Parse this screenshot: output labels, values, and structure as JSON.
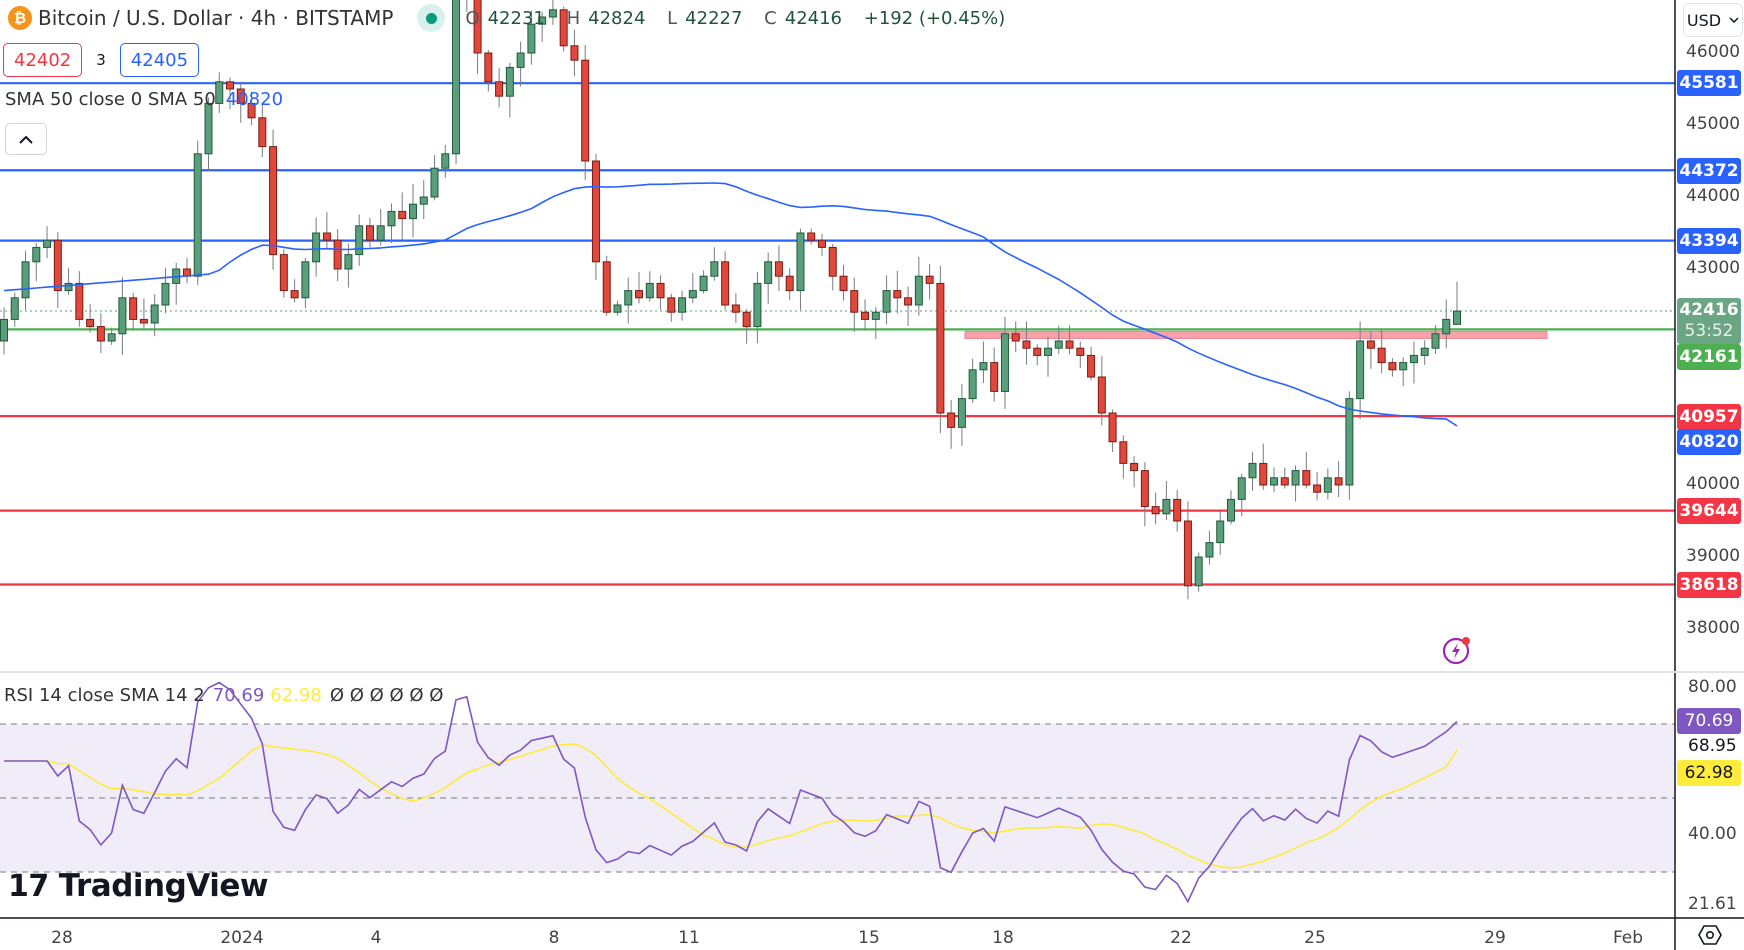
{
  "header": {
    "symbol_title": "Bitcoin / U.S. Dollar · 4h · BITSTAMP",
    "symbol_icon": "bitcoin-icon",
    "market_status_icon": "market-open-dot-icon",
    "ohlc": {
      "open_label": "O",
      "open": "42231",
      "high_label": "H",
      "high": "42824",
      "low_label": "L",
      "low": "42227",
      "close_label": "C",
      "close": "42416",
      "change": "+192 (+0.45%)"
    }
  },
  "trade": {
    "sell_price": "42402",
    "spread": "3",
    "buy_price": "42405"
  },
  "sma_legend": {
    "label": "SMA 50 close 0 SMA 50",
    "value": "40820"
  },
  "rsi_legend": {
    "label": "RSI 14 close SMA 14 2",
    "rsi_value": "70.69",
    "sma_value": "62.98",
    "na_values": [
      "Ø",
      "Ø",
      "Ø",
      "Ø",
      "Ø",
      "Ø"
    ]
  },
  "currency": {
    "selected": "USD"
  },
  "branding": {
    "logo_text": "TradingView",
    "logo_mark": "17"
  },
  "price_axis": {
    "ticks": [
      "46000",
      "45000",
      "44000",
      "43000",
      "40000",
      "39000",
      "38000"
    ],
    "tags": [
      {
        "value": "45581",
        "color": "#2962ff"
      },
      {
        "value": "44372",
        "color": "#2962ff"
      },
      {
        "value": "43394",
        "color": "#2962ff"
      },
      {
        "value": "42161",
        "color": "#4caf50"
      },
      {
        "value": "40957",
        "color": "#f23645"
      },
      {
        "value": "40820",
        "color": "#2962ff"
      },
      {
        "value": "39644",
        "color": "#f23645"
      },
      {
        "value": "38618",
        "color": "#f23645"
      }
    ],
    "last_price": "42416",
    "countdown": "53:52",
    "last_price_color": "#6aa584"
  },
  "rsi_axis": {
    "ticks": [
      "80.00",
      "68.95",
      "40.00",
      "21.61"
    ],
    "rsi_tag": {
      "value": "70.69",
      "color": "#7e57c2"
    },
    "sma_tag": {
      "value": "62.98",
      "color": "#ffeb3b"
    }
  },
  "time_axis": {
    "labels": [
      "28",
      "2024",
      "4",
      "8",
      "11",
      "15",
      "18",
      "22",
      "25",
      "29",
      "Feb"
    ]
  },
  "colors": {
    "up": "#5b9e7b",
    "up_border": "#1e5b3a",
    "down": "#e0483c",
    "down_border": "#7a1b14",
    "sma": "#2962ff",
    "resistance": "#2962ff",
    "support": "#f23645",
    "pivot": "#4caf50",
    "zone": "#f7a1a9",
    "rsi": "#7e57c2",
    "rsi_sma": "#ffeb3b",
    "rsi_band": "#f0ecf8"
  },
  "chart_data": [
    {
      "type": "candlestick",
      "title": "Bitcoin / U.S. Dollar · 4h · BITSTAMP",
      "xlabel": "",
      "ylabel": "USD",
      "ylim": [
        37600,
        46700
      ],
      "x_ticks": [
        "28",
        "2024",
        "4",
        "8",
        "11",
        "15",
        "18",
        "22",
        "25",
        "29",
        "Feb"
      ],
      "y_ticks": [
        38000,
        39000,
        40000,
        43000,
        44000,
        45000,
        46000
      ],
      "last": {
        "open": 42231,
        "high": 42824,
        "low": 42227,
        "close": 42416,
        "change": 192,
        "change_pct": 0.45
      },
      "horizontal_levels": {
        "resistance": [
          45581,
          44372,
          43394
        ],
        "pivot": 42161,
        "support": [
          40957,
          39644,
          38618
        ]
      },
      "zone": {
        "from_date": "~17",
        "low": 42080,
        "high": 42200,
        "color": "pink"
      },
      "closes_path": [
        42300,
        42600,
        43100,
        43300,
        43400,
        42700,
        42800,
        42300,
        42200,
        42000,
        42100,
        42600,
        42300,
        42250,
        42500,
        42800,
        43000,
        42900,
        44600,
        45300,
        45600,
        45500,
        45300,
        45100,
        44700,
        43200,
        42700,
        42600,
        43100,
        43500,
        43400,
        43000,
        43200,
        43600,
        43400,
        43600,
        43800,
        43700,
        43900,
        44000,
        44400,
        44600,
        46800,
        47000,
        46000,
        45600,
        45400,
        45800,
        46000,
        46400,
        46500,
        46600,
        46100,
        45900,
        44500,
        43100,
        42400,
        42500,
        42700,
        42600,
        42800,
        42600,
        42400,
        42600,
        42700,
        42900,
        43100,
        42500,
        42400,
        42200,
        42800,
        43100,
        42900,
        42700,
        43500,
        43400,
        43300,
        42900,
        42700,
        42400,
        42300,
        42400,
        42700,
        42600,
        42500,
        42900,
        42800,
        41000,
        40800,
        41200,
        41600,
        41700,
        41300,
        42100,
        42000,
        41900,
        41800,
        41900,
        42000,
        41900,
        41800,
        41500,
        41000,
        40600,
        40300,
        40200,
        39700,
        39600,
        39800,
        39500,
        38600,
        39000,
        39200,
        39500,
        39800,
        40100,
        40300,
        40000,
        40100,
        40000,
        40200,
        40000,
        39900,
        40100,
        40000,
        41200,
        42000,
        41900,
        41700,
        41600,
        41700,
        41800,
        41900,
        42100,
        42300,
        42416
      ],
      "indicators": [
        {
          "name": "SMA 50",
          "last": 40820,
          "color": "#2962ff"
        }
      ]
    },
    {
      "type": "line",
      "title": "RSI 14 close SMA 14 2",
      "ylim": [
        21.61,
        85
      ],
      "y_ticks": [
        80.0,
        68.95,
        40.0,
        21.61
      ],
      "bands": {
        "upper": 70,
        "middle": 50,
        "lower": 30
      },
      "series": [
        {
          "name": "RSI",
          "color": "#7e57c2",
          "last": 70.69
        },
        {
          "name": "SMA",
          "color": "#ffeb3b",
          "last": 62.98
        }
      ]
    }
  ]
}
